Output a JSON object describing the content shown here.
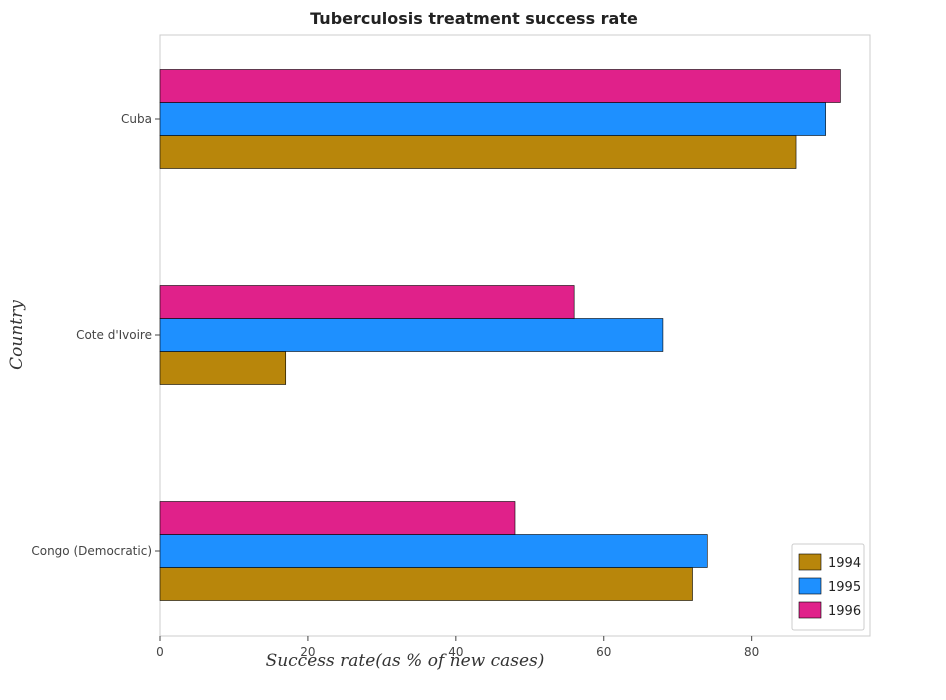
{
  "chart_data": {
    "type": "bar",
    "orientation": "horizontal",
    "title": "Tuberculosis treatment success rate",
    "xlabel": "Success rate(as % of new cases)",
    "ylabel": "Country",
    "categories": [
      "Congo (Democratic)",
      "Cote d'Ivoire",
      "Cuba"
    ],
    "series": [
      {
        "name": "1994",
        "color": "#b8860b",
        "values": [
          72,
          17,
          86
        ]
      },
      {
        "name": "1995",
        "color": "#1e90ff",
        "values": [
          74,
          68,
          90
        ]
      },
      {
        "name": "1996",
        "color": "#e0218a",
        "values": [
          48,
          56,
          92
        ]
      }
    ],
    "xlim": [
      0,
      96
    ],
    "xticks": [
      0,
      20,
      40,
      60,
      80
    ],
    "grid": false,
    "legend_position": "bottom-right"
  }
}
